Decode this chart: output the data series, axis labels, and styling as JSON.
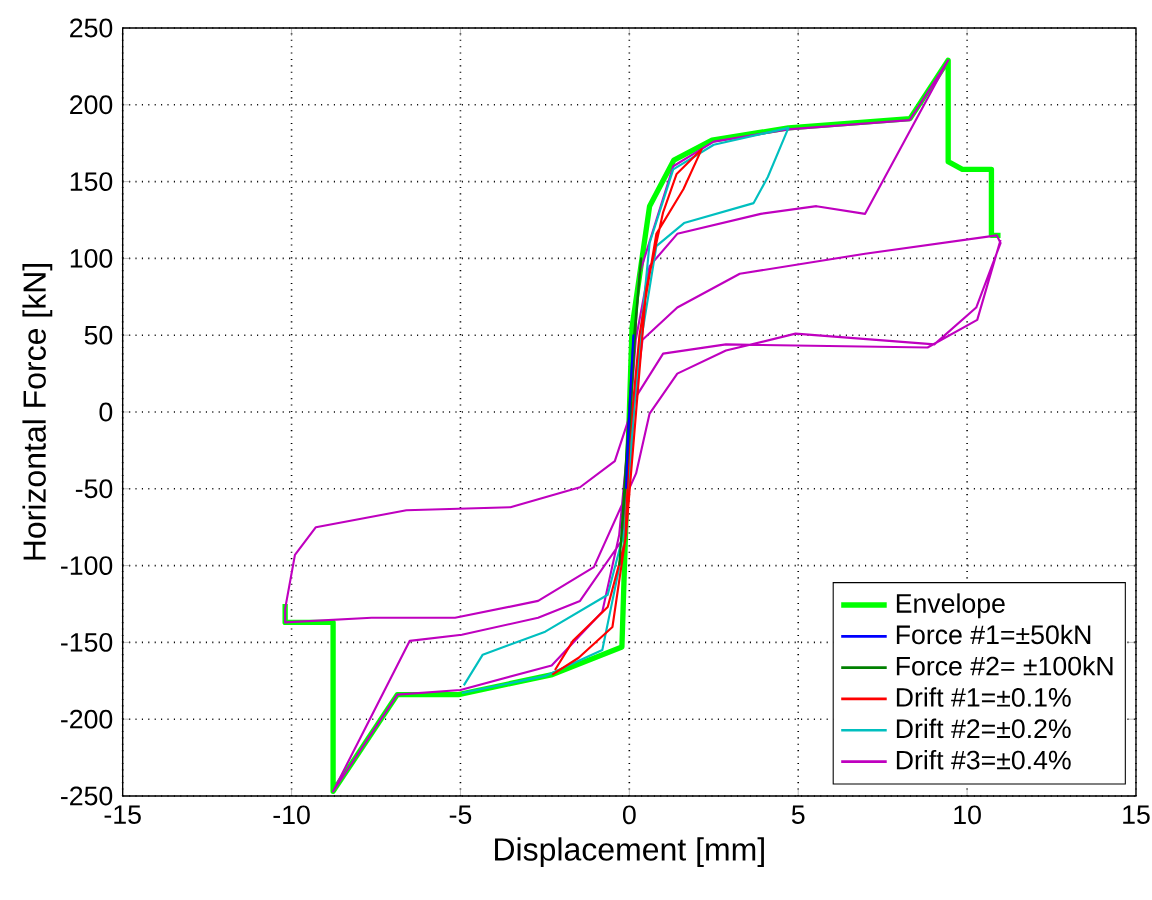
{
  "chart_data": {
    "type": "line",
    "xlabel": "Displacement [mm]",
    "ylabel": "Horizontal Force [kN]",
    "xlim": [
      -15,
      15
    ],
    "ylim": [
      -250,
      250
    ],
    "xticks": [
      -15,
      -10,
      -5,
      0,
      5,
      10,
      15
    ],
    "yticks": [
      -250,
      -200,
      -150,
      -100,
      -50,
      0,
      50,
      100,
      150,
      200,
      250
    ],
    "grid": true,
    "legend": "bottom right",
    "marker": "none",
    "line_style": "solid",
    "series": [
      {
        "name": "Envelope",
        "color": "#00ff00",
        "x": [
          -10.19,
          -10.19,
          -8.77,
          -8.77,
          -6.87,
          -5.06,
          -2.28,
          -0.22,
          0.08,
          0.6,
          1.32,
          2.45,
          4.71,
          8.31,
          9.44,
          9.44,
          9.86,
          10.72,
          10.72,
          10.99
        ],
        "values": [
          -125,
          -137,
          -137,
          -247,
          -184,
          -184,
          -171,
          -153,
          55,
          134,
          164,
          177,
          185,
          191,
          229,
          163,
          158,
          158,
          115,
          115
        ]
      },
      {
        "name": "Force #1=±50kN",
        "color": "#0000ff",
        "x": [
          -0.1,
          0,
          0.12,
          0.05,
          -0.05,
          -0.09
        ],
        "values": [
          -50,
          0,
          50,
          20,
          -20,
          -45
        ]
      },
      {
        "name": "Force #2= ±100kN",
        "color": "#008000",
        "x": [
          -0.3,
          -0.05,
          0.2,
          0.35,
          0.1,
          -0.15,
          -0.28
        ],
        "values": [
          -100,
          -30,
          60,
          100,
          40,
          -50,
          -95
        ]
      },
      {
        "name": "Drift   #1=±0.1%",
        "color": "#ff0000",
        "x": [
          -2.28,
          -1.5,
          -0.5,
          -0.1,
          0.2,
          0.5,
          1.0,
          1.4,
          2.14,
          1.6,
          0.8,
          0.3,
          0,
          -0.12,
          -0.64,
          -1.67,
          -2.2
        ],
        "values": [
          -171,
          -160,
          -140,
          -80,
          0,
          80,
          130,
          155,
          171,
          145,
          116,
          50,
          -20,
          -84,
          -127,
          -149,
          -168
        ]
      },
      {
        "name": "Drift   #2=±0.2%",
        "color": "#00bfbf",
        "x": [
          -4.96,
          -2.5,
          -0.8,
          -0.1,
          0.2,
          0.6,
          1.3,
          2.5,
          4.71,
          4.1,
          3.68,
          1.62,
          0.8,
          0.3,
          0,
          -0.12,
          -0.64,
          -2.49,
          -4.34,
          -4.9
        ],
        "values": [
          -183,
          -172,
          -155,
          -80,
          20,
          110,
          158,
          174,
          185,
          153,
          136,
          123,
          108,
          40,
          -30,
          -75,
          -119,
          -143,
          -158,
          -178
        ]
      },
      {
        "name": "Drift   #3=±0.4%",
        "color": "#bf00bf",
        "x": [
          0,
          0.3,
          1.3,
          2.5,
          4.7,
          8.3,
          9.44,
          6.98,
          5.54,
          3.89,
          1.42,
          0.6,
          0.19,
          0,
          -0.3,
          -0.8,
          -2.3,
          -5,
          -6.87,
          -8.77,
          -6.5,
          -4.96,
          -2.7,
          -1.46,
          -0.23,
          0,
          0.39,
          1.42,
          3.27,
          6.98,
          10.88,
          10.99,
          10.27,
          9.03,
          4.92,
          2.86,
          1.42,
          0.6,
          0.2,
          -1.05,
          -2.7,
          -5.16,
          -7.63,
          -10.19,
          -10.19,
          -9.9,
          -9.28,
          -6.6,
          -3.52,
          -1.46,
          -0.43,
          0.2,
          1.0,
          2.86,
          8.83,
          10.3,
          10.99
        ],
        "values": [
          0,
          90,
          160,
          176,
          184,
          190,
          229,
          129,
          134,
          129,
          116,
          95,
          47,
          -10,
          -80,
          -130,
          -165,
          -181,
          -184,
          -247,
          -149,
          -145,
          -134,
          -123,
          -84,
          -20,
          47,
          68,
          90,
          103,
          115,
          110,
          68,
          44,
          51,
          40,
          25,
          -1,
          -40,
          -101,
          -123,
          -134,
          -134,
          -137,
          -128,
          -93,
          -75,
          -64,
          -62,
          -49,
          -32,
          10,
          38,
          44,
          42,
          60,
          112
        ]
      }
    ]
  }
}
